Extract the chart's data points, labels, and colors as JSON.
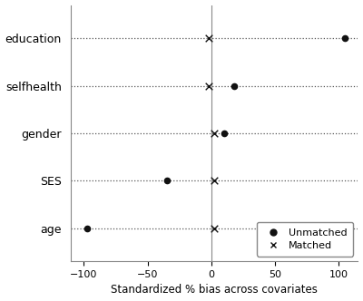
{
  "covariates": [
    "education",
    "selfhealth",
    "gender",
    "SES",
    "age"
  ],
  "unmatched": [
    105,
    18,
    10,
    -35,
    -97
  ],
  "matched": [
    -2,
    -2,
    2,
    2,
    2
  ],
  "xlim": [
    -110,
    115
  ],
  "xticks": [
    -100,
    -50,
    0,
    50,
    100
  ],
  "xlabel": "Standardized % bias across covariates",
  "background_color": "#ffffff",
  "dot_color": "#111111",
  "dot_size": 5.5,
  "cross_size": 5.5,
  "legend_unmatched_label": "Unmatched",
  "legend_matched_label": "Matched",
  "dotted_line_color": "#555555",
  "vline_color": "#888888"
}
